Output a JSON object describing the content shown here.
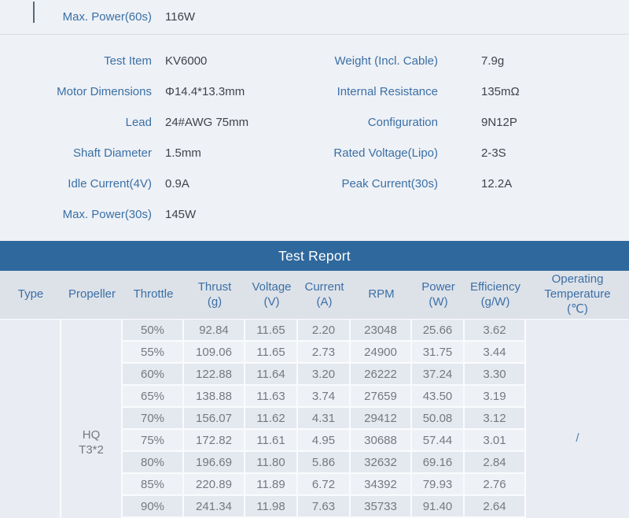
{
  "spec_top": {
    "label": "Max. Power(60s)",
    "value": "116W"
  },
  "specs": {
    "rows": [
      {
        "l_label": "Test Item",
        "l_value": "KV6000",
        "r_label": "Weight (Incl. Cable)",
        "r_value": "7.9g"
      },
      {
        "l_label": "Motor Dimensions",
        "l_value": "Φ14.4*13.3mm",
        "r_label": "Internal Resistance",
        "r_value": "135mΩ"
      },
      {
        "l_label": "Lead",
        "l_value": "24#AWG 75mm",
        "r_label": "Configuration",
        "r_value": "9N12P"
      },
      {
        "l_label": "Shaft Diameter",
        "l_value": "1.5mm",
        "r_label": "Rated Voltage(Lipo)",
        "r_value": "2-3S"
      },
      {
        "l_label": "Idle Current(4V)",
        "l_value": "0.9A",
        "r_label": "Peak Current(30s)",
        "r_value": "12.2A"
      },
      {
        "l_label": "Max. Power(30s)",
        "l_value": "145W",
        "r_label": "",
        "r_value": ""
      }
    ]
  },
  "report": {
    "title": "Test Report",
    "columns": {
      "type": "Type",
      "propeller": "Propeller",
      "throttle": "Throttle",
      "thrust": "Thrust\n(g)",
      "voltage": "Voltage\n(V)",
      "current": "Current\n(A)",
      "rpm": "RPM",
      "power": "Power\n(W)",
      "efficiency": "Efficiency\n(g/W)",
      "op_temp": "Operating\nTemperature\n(℃)"
    },
    "type_value": "",
    "propeller_value": "HQ\nT3*2",
    "operating_temperature_value": "/",
    "rows": [
      {
        "throttle": "50%",
        "thrust": "92.84",
        "voltage": "11.65",
        "current": "2.20",
        "rpm": "23048",
        "power": "25.66",
        "efficiency": "3.62"
      },
      {
        "throttle": "55%",
        "thrust": "109.06",
        "voltage": "11.65",
        "current": "2.73",
        "rpm": "24900",
        "power": "31.75",
        "efficiency": "3.44"
      },
      {
        "throttle": "60%",
        "thrust": "122.88",
        "voltage": "11.64",
        "current": "3.20",
        "rpm": "26222",
        "power": "37.24",
        "efficiency": "3.30"
      },
      {
        "throttle": "65%",
        "thrust": "138.88",
        "voltage": "11.63",
        "current": "3.74",
        "rpm": "27659",
        "power": "43.50",
        "efficiency": "3.19"
      },
      {
        "throttle": "70%",
        "thrust": "156.07",
        "voltage": "11.62",
        "current": "4.31",
        "rpm": "29412",
        "power": "50.08",
        "efficiency": "3.12"
      },
      {
        "throttle": "75%",
        "thrust": "172.82",
        "voltage": "11.61",
        "current": "4.95",
        "rpm": "30688",
        "power": "57.44",
        "efficiency": "3.01"
      },
      {
        "throttle": "80%",
        "thrust": "196.69",
        "voltage": "11.80",
        "current": "5.86",
        "rpm": "32632",
        "power": "69.16",
        "efficiency": "2.84"
      },
      {
        "throttle": "85%",
        "thrust": "220.89",
        "voltage": "11.89",
        "current": "6.72",
        "rpm": "34392",
        "power": "79.93",
        "efficiency": "2.76"
      },
      {
        "throttle": "90%",
        "thrust": "241.34",
        "voltage": "11.98",
        "current": "7.63",
        "rpm": "35733",
        "power": "91.40",
        "efficiency": "2.64"
      }
    ]
  },
  "colors": {
    "banner_blue": "#2f689c",
    "header_bg": "#dde2e9",
    "label_blue": "#3a70a5",
    "row_dark": "#e4e9ef",
    "row_light": "#eef2f7",
    "span_cell_bg": "#e9edf3",
    "page_bg": "#eef1f6"
  }
}
